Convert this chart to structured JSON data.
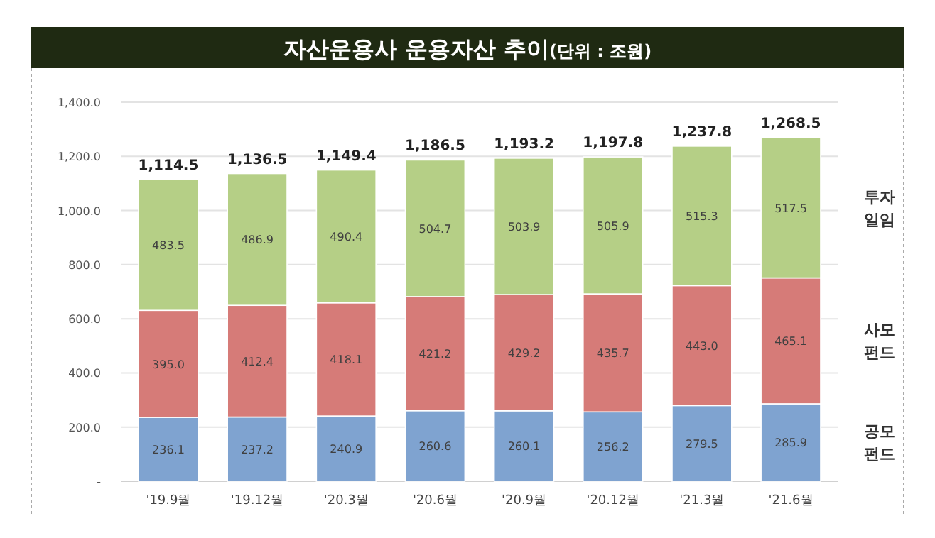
{
  "chart_data": {
    "type": "bar",
    "title": "자산운용사 운용자산 추이",
    "subtitle": "(단위 : 조원)",
    "categories": [
      "'19.9월",
      "'19.12월",
      "'20.3월",
      "'20.6월",
      "'20.9월",
      "'20.12월",
      "'21.3월",
      "'21.6월"
    ],
    "stacked": true,
    "grid": "y",
    "legend": "right",
    "ylim": [
      0,
      1400
    ],
    "yticks": [
      {
        "value": 0,
        "label": "-"
      },
      {
        "value": 200,
        "label": "200.0"
      },
      {
        "value": 400,
        "label": "400.0"
      },
      {
        "value": 600,
        "label": "600.0"
      },
      {
        "value": 800,
        "label": "800.0"
      },
      {
        "value": 1000,
        "label": "1,000.0"
      },
      {
        "value": 1200,
        "label": "1,200.0"
      },
      {
        "value": 1400,
        "label": "1,400.0"
      }
    ],
    "totals": [
      "1,114.5",
      "1,136.5",
      "1,149.4",
      "1,186.5",
      "1,193.2",
      "1,197.8",
      "1,237.8",
      "1,268.5"
    ],
    "series": [
      {
        "name": "공모 펀드",
        "color": "#7fa3d0",
        "values": [
          236.1,
          237.2,
          240.9,
          260.6,
          260.1,
          256.2,
          279.5,
          285.9
        ],
        "value_labels": [
          "236.1",
          "237.2",
          "240.9",
          "260.6",
          "260.1",
          "256.2",
          "279.5",
          "285.9"
        ]
      },
      {
        "name": "사모 펀드",
        "color": "#d67b78",
        "values": [
          395.0,
          412.4,
          418.1,
          421.2,
          429.2,
          435.7,
          443.0,
          465.1
        ],
        "value_labels": [
          "395.0",
          "412.4",
          "418.1",
          "421.2",
          "429.2",
          "435.7",
          "443.0",
          "465.1"
        ]
      },
      {
        "name": "투자 일임",
        "color": "#b5cf86",
        "values": [
          483.5,
          486.9,
          490.4,
          504.7,
          503.9,
          505.9,
          515.3,
          517.5
        ],
        "value_labels": [
          "483.5",
          "486.9",
          "490.4",
          "504.7",
          "503.9",
          "505.9",
          "515.3",
          "517.5"
        ]
      }
    ]
  }
}
